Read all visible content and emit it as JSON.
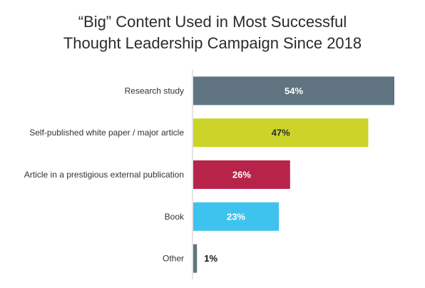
{
  "chart_data": {
    "type": "bar",
    "orientation": "horizontal",
    "title_lines": [
      "“Big” Content Used in Most Successful",
      "Thought Leadership Campaign Since 2018"
    ],
    "categories": [
      "Research study",
      "Self-published white paper / major article",
      "Article in a prestigious external publication",
      "Book",
      "Other"
    ],
    "values": [
      54,
      47,
      26,
      23,
      1
    ],
    "value_labels": [
      "54%",
      "47%",
      "26%",
      "23%",
      "1%"
    ],
    "colors": [
      "#5f7480",
      "#ccd42a",
      "#b8234a",
      "#3ec3ef",
      "#5f7480"
    ],
    "label_colors": [
      "#ffffff",
      "#2b2b2b",
      "#ffffff",
      "#ffffff",
      "#111111"
    ],
    "xlim": [
      0,
      54
    ],
    "grid": false,
    "legend": "none"
  }
}
